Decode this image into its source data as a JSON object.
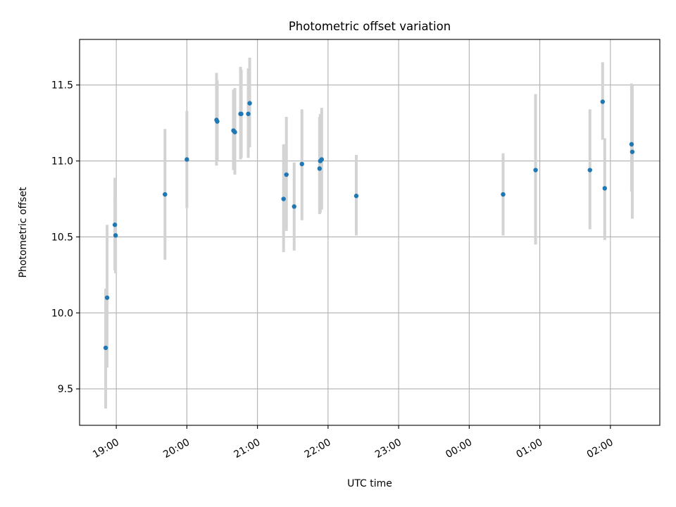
{
  "chart_data": {
    "type": "scatter",
    "title": "Photometric offset variation",
    "xlabel": "UTC time",
    "ylabel": "Photometric offset",
    "grid": true,
    "x_unit": "hours since 19:00 UTC",
    "xlim": [
      -0.52,
      7.7
    ],
    "ylim": [
      9.26,
      11.8
    ],
    "x_ticks": [
      {
        "v": 0,
        "label": "19:00"
      },
      {
        "v": 1,
        "label": "20:00"
      },
      {
        "v": 2,
        "label": "21:00"
      },
      {
        "v": 3,
        "label": "22:00"
      },
      {
        "v": 4,
        "label": "23:00"
      },
      {
        "v": 5,
        "label": "00:00"
      },
      {
        "v": 6,
        "label": "01:00"
      },
      {
        "v": 7,
        "label": "02:00"
      }
    ],
    "y_ticks": [
      {
        "v": 9.5,
        "label": "9.5"
      },
      {
        "v": 10.0,
        "label": "10.0"
      },
      {
        "v": 10.5,
        "label": "10.5"
      },
      {
        "v": 11.0,
        "label": "11.0"
      },
      {
        "v": 11.5,
        "label": "11.5"
      }
    ],
    "points": [
      {
        "x": -0.15,
        "y": 9.77,
        "lo": 9.37,
        "hi": 10.16
      },
      {
        "x": -0.13,
        "y": 10.1,
        "lo": 9.64,
        "hi": 10.58
      },
      {
        "x": -0.02,
        "y": 10.58,
        "lo": 10.28,
        "hi": 10.89
      },
      {
        "x": -0.01,
        "y": 10.51,
        "lo": 10.26,
        "hi": 10.76
      },
      {
        "x": 0.69,
        "y": 10.78,
        "lo": 10.35,
        "hi": 11.21
      },
      {
        "x": 1.0,
        "y": 11.01,
        "lo": 10.69,
        "hi": 11.33
      },
      {
        "x": 1.42,
        "y": 11.27,
        "lo": 10.97,
        "hi": 11.58
      },
      {
        "x": 1.43,
        "y": 11.26,
        "lo": 11.0,
        "hi": 11.53
      },
      {
        "x": 1.66,
        "y": 11.2,
        "lo": 10.94,
        "hi": 11.47
      },
      {
        "x": 1.68,
        "y": 11.19,
        "lo": 10.91,
        "hi": 11.48
      },
      {
        "x": 1.76,
        "y": 11.31,
        "lo": 11.01,
        "hi": 11.62
      },
      {
        "x": 1.77,
        "y": 11.31,
        "lo": 11.02,
        "hi": 11.6
      },
      {
        "x": 1.87,
        "y": 11.31,
        "lo": 11.02,
        "hi": 11.61
      },
      {
        "x": 1.89,
        "y": 11.38,
        "lo": 11.09,
        "hi": 11.68
      },
      {
        "x": 2.37,
        "y": 10.75,
        "lo": 10.4,
        "hi": 11.11
      },
      {
        "x": 2.41,
        "y": 10.91,
        "lo": 10.54,
        "hi": 11.29
      },
      {
        "x": 2.52,
        "y": 10.7,
        "lo": 10.41,
        "hi": 10.99
      },
      {
        "x": 2.63,
        "y": 10.98,
        "lo": 10.61,
        "hi": 11.34
      },
      {
        "x": 2.88,
        "y": 10.95,
        "lo": 10.65,
        "hi": 11.29
      },
      {
        "x": 2.89,
        "y": 11.0,
        "lo": 10.66,
        "hi": 11.31
      },
      {
        "x": 2.91,
        "y": 11.01,
        "lo": 10.68,
        "hi": 11.35
      },
      {
        "x": 3.4,
        "y": 10.77,
        "lo": 10.51,
        "hi": 11.04
      },
      {
        "x": 5.48,
        "y": 10.78,
        "lo": 10.51,
        "hi": 11.05
      },
      {
        "x": 5.94,
        "y": 10.94,
        "lo": 10.45,
        "hi": 11.44
      },
      {
        "x": 6.71,
        "y": 10.94,
        "lo": 10.55,
        "hi": 11.34
      },
      {
        "x": 6.89,
        "y": 11.39,
        "lo": 11.14,
        "hi": 11.65
      },
      {
        "x": 6.92,
        "y": 10.82,
        "lo": 10.48,
        "hi": 11.15
      },
      {
        "x": 7.3,
        "y": 11.11,
        "lo": 10.8,
        "hi": 11.51
      },
      {
        "x": 7.31,
        "y": 11.06,
        "lo": 10.62,
        "hi": 11.5
      }
    ],
    "colors": {
      "marker": "#1f77b4",
      "errorbar": "#d3d3d3"
    }
  }
}
